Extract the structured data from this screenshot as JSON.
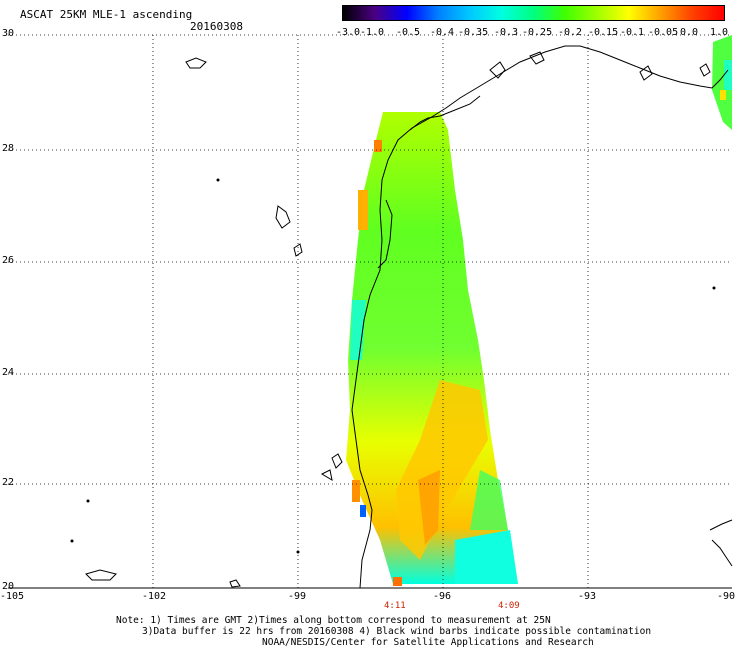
{
  "header": {
    "title": "ASCAT 25KM MLE-1 ascending",
    "date": "20160308"
  },
  "colorbar": {
    "labels": [
      "-3.0",
      "-1.0",
      "-0.5",
      "-0.4",
      "-0.35",
      "-0.3",
      "-0.25",
      "-0.2",
      "-0.15",
      "-0.1",
      "-0.05",
      "0.0",
      "1.0"
    ],
    "colors": [
      "#000000",
      "#4b0082",
      "#0000ff",
      "#0080ff",
      "#00c8ff",
      "#00ffe0",
      "#00ff80",
      "#40ff00",
      "#a0ff00",
      "#ffff00",
      "#ffa000",
      "#ff4000",
      "#ff0000"
    ]
  },
  "axes": {
    "lat_labels": [
      "30",
      "28",
      "26",
      "24",
      "22",
      "20"
    ],
    "lon_labels": [
      "-105",
      "-102",
      "-99",
      "-96",
      "-93",
      "-90"
    ]
  },
  "pass_times": [
    "4:11",
    "4:09"
  ],
  "notes": [
    "Note: 1) Times are GMT 2)Times along bottom correspond to measurement at 25N",
    "3)Data buffer is 22 hrs from 20160308 4) Black wind barbs indicate possible contamination",
    "NOAA/NESDIS/Center for Satellite Applications and Research"
  ]
}
